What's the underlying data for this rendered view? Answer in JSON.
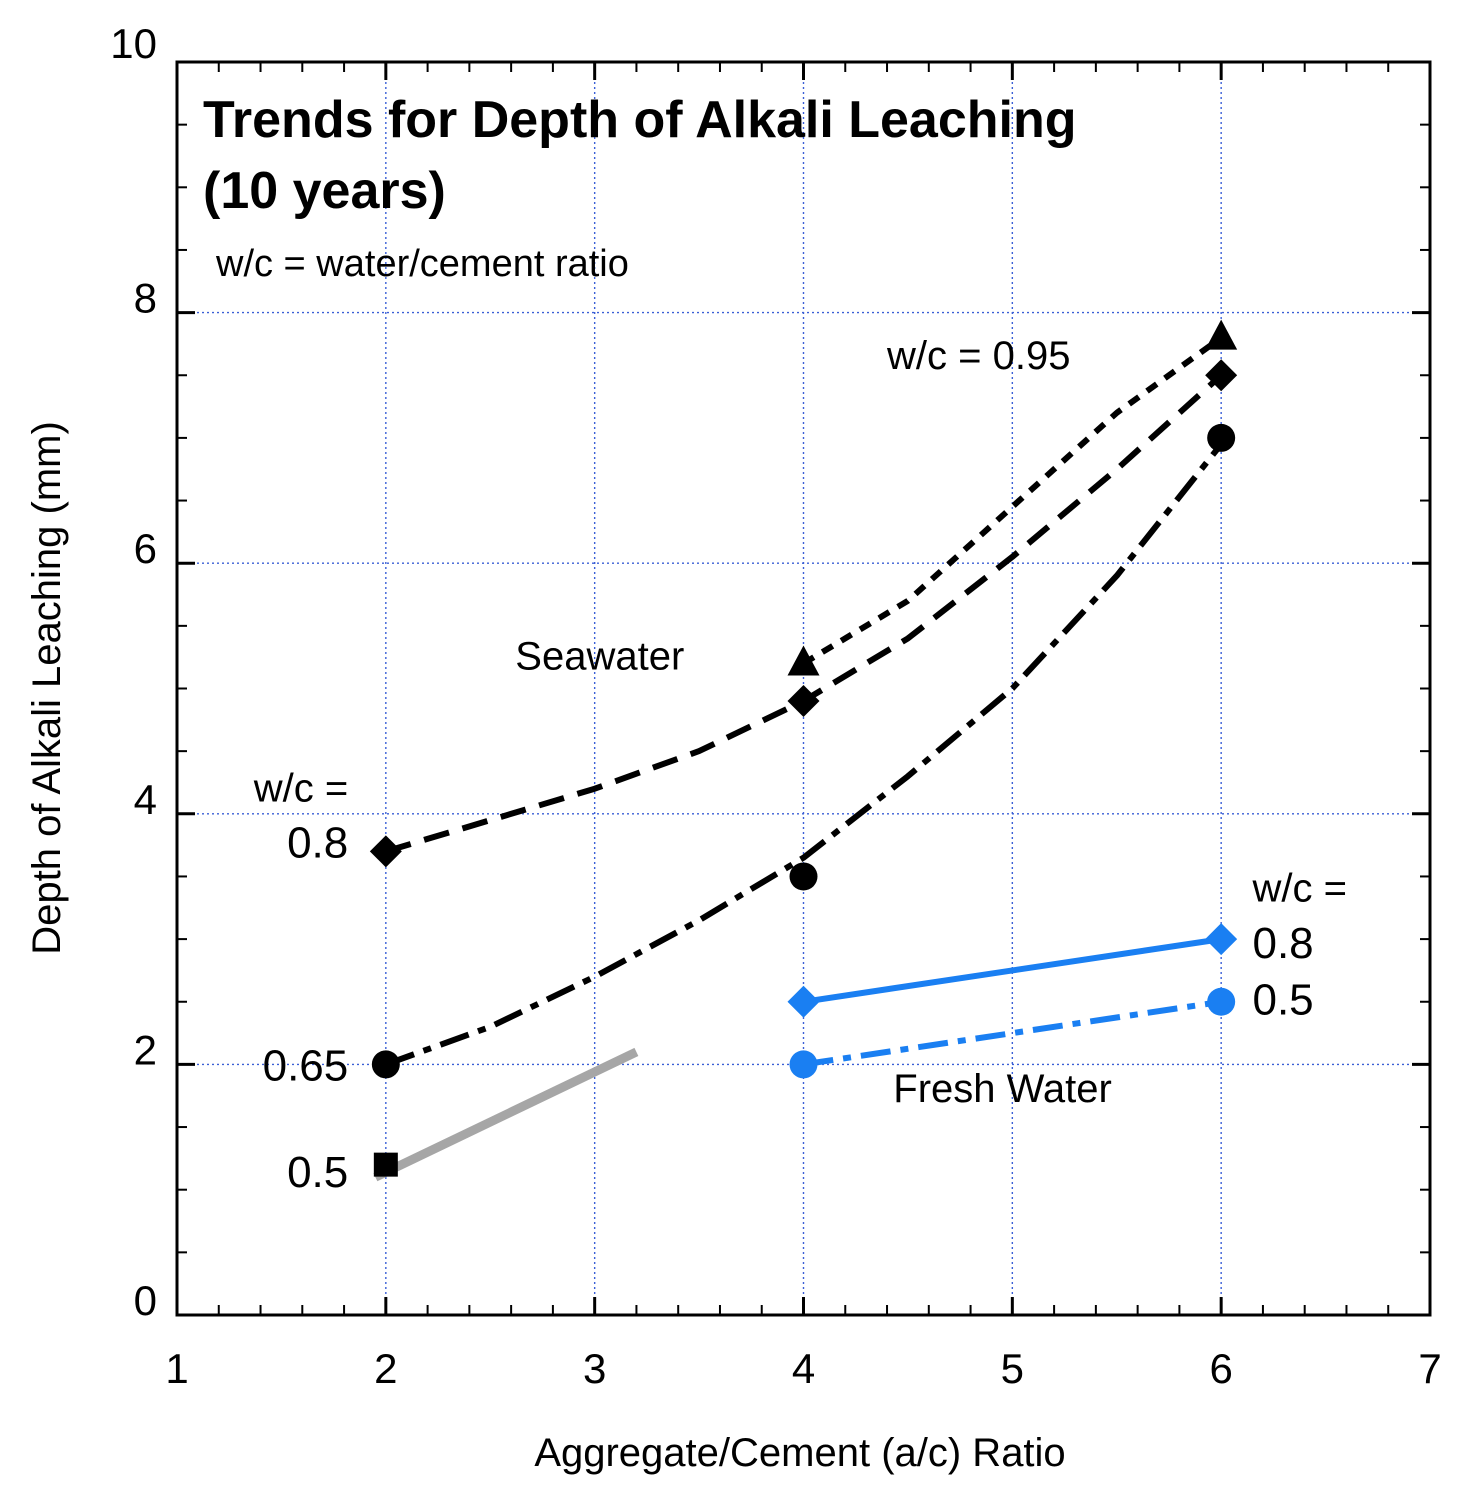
{
  "chart_data": {
    "type": "line",
    "title": "Trends for Depth of Alkali Leaching",
    "subtitle": "(10 years)",
    "note": "w/c = water/cement ratio",
    "xlabel": "Aggregate/Cement (a/c) Ratio",
    "ylabel": "Depth of Alkali Leaching (mm)",
    "xlim": [
      1,
      7
    ],
    "ylim": [
      0,
      10
    ],
    "xticks": [
      1,
      2,
      3,
      4,
      5,
      6,
      7
    ],
    "yticks": [
      0,
      2,
      4,
      6,
      8,
      10
    ],
    "x_tick_labels": [
      "1",
      "2",
      "3",
      "4",
      "5",
      "6",
      "7"
    ],
    "y_tick_labels": [
      "0",
      "2",
      "4",
      "6",
      "8",
      "10"
    ],
    "grid": true,
    "series": [
      {
        "name": "Seawater w/c = 0.95",
        "group": "Seawater",
        "wc": 0.95,
        "marker": "triangle",
        "color": "#000000",
        "line_style": "short-dash",
        "points": [
          {
            "x": 4,
            "y": 5.2
          },
          {
            "x": 6,
            "y": 7.8
          }
        ],
        "curve": [
          {
            "x": 4,
            "y": 5.2
          },
          {
            "x": 4.5,
            "y": 5.7
          },
          {
            "x": 5,
            "y": 6.45
          },
          {
            "x": 5.5,
            "y": 7.2
          },
          {
            "x": 6,
            "y": 7.8
          }
        ]
      },
      {
        "name": "Seawater w/c = 0.8",
        "group": "Seawater",
        "wc": 0.8,
        "marker": "diamond",
        "color": "#000000",
        "line_style": "dash",
        "points": [
          {
            "x": 2,
            "y": 3.7
          },
          {
            "x": 4,
            "y": 4.9
          },
          {
            "x": 6,
            "y": 7.5
          }
        ],
        "curve": [
          {
            "x": 2,
            "y": 3.7
          },
          {
            "x": 2.5,
            "y": 3.95
          },
          {
            "x": 3,
            "y": 4.2
          },
          {
            "x": 3.5,
            "y": 4.5
          },
          {
            "x": 4,
            "y": 4.9
          },
          {
            "x": 4.5,
            "y": 5.4
          },
          {
            "x": 5,
            "y": 6.05
          },
          {
            "x": 5.5,
            "y": 6.75
          },
          {
            "x": 6,
            "y": 7.5
          }
        ]
      },
      {
        "name": "Seawater w/c = 0.65",
        "group": "Seawater",
        "wc": 0.65,
        "marker": "circle",
        "color": "#000000",
        "line_style": "dash-dot",
        "points": [
          {
            "x": 2,
            "y": 2.0
          },
          {
            "x": 4,
            "y": 3.5
          },
          {
            "x": 6,
            "y": 7.0
          }
        ],
        "curve": [
          {
            "x": 2,
            "y": 2.0
          },
          {
            "x": 2.5,
            "y": 2.3
          },
          {
            "x": 3,
            "y": 2.7
          },
          {
            "x": 3.5,
            "y": 3.15
          },
          {
            "x": 4,
            "y": 3.65
          },
          {
            "x": 4.5,
            "y": 4.3
          },
          {
            "x": 5,
            "y": 5.0
          },
          {
            "x": 5.5,
            "y": 5.9
          },
          {
            "x": 6,
            "y": 6.95
          }
        ]
      },
      {
        "name": "Seawater w/c = 0.5",
        "group": "Seawater",
        "wc": 0.5,
        "marker": "square",
        "color": "#000000",
        "line_style": "none",
        "points": [
          {
            "x": 2,
            "y": 1.2
          }
        ],
        "curve": []
      },
      {
        "name": "Trend w/c = 0.5",
        "group": "Seawater",
        "wc": 0.5,
        "marker": "none",
        "color": "#a6a6a6",
        "line_style": "solid-thick",
        "points": [],
        "curve": [
          {
            "x": 1.95,
            "y": 1.1
          },
          {
            "x": 3.2,
            "y": 2.1
          }
        ]
      },
      {
        "name": "Fresh Water w/c = 0.8",
        "group": "Fresh Water",
        "wc": 0.8,
        "marker": "diamond",
        "color": "#1a7ff2",
        "line_style": "solid",
        "points": [
          {
            "x": 4,
            "y": 2.5
          },
          {
            "x": 6,
            "y": 3.0
          }
        ],
        "curve": [
          {
            "x": 4,
            "y": 2.5
          },
          {
            "x": 6,
            "y": 3.0
          }
        ]
      },
      {
        "name": "Fresh Water w/c = 0.5",
        "group": "Fresh Water",
        "wc": 0.5,
        "marker": "circle",
        "color": "#1a7ff2",
        "line_style": "dash-dot",
        "points": [
          {
            "x": 4,
            "y": 2.0
          },
          {
            "x": 6,
            "y": 2.5
          }
        ],
        "curve": [
          {
            "x": 4,
            "y": 2.0
          },
          {
            "x": 6,
            "y": 2.5
          }
        ]
      }
    ],
    "annotations": [
      {
        "id": "wc-095",
        "text": "w/c = 0.95",
        "x": 4.4,
        "y": 7.55,
        "anchor": "start",
        "size": "medium"
      },
      {
        "id": "seawater",
        "text": "Seawater",
        "x": 2.62,
        "y": 5.15,
        "anchor": "start",
        "size": "medium"
      },
      {
        "id": "wc-eq-left",
        "text": "w/c =",
        "x": 1.82,
        "y": 4.1,
        "anchor": "end",
        "size": "medium"
      },
      {
        "id": "wc-08-left",
        "text": "0.8",
        "x": 1.82,
        "y": 3.65,
        "anchor": "end",
        "size": "large"
      },
      {
        "id": "wc-065-left",
        "text": "0.65",
        "x": 1.82,
        "y": 1.87,
        "anchor": "end",
        "size": "large"
      },
      {
        "id": "wc-05-left",
        "text": "0.5",
        "x": 1.82,
        "y": 1.02,
        "anchor": "end",
        "size": "large"
      },
      {
        "id": "wc-eq-right",
        "text": "w/c =",
        "x": 6.15,
        "y": 3.3,
        "anchor": "start",
        "size": "medium"
      },
      {
        "id": "wc-08-right",
        "text": "0.8",
        "x": 6.15,
        "y": 2.85,
        "anchor": "start",
        "size": "large"
      },
      {
        "id": "wc-05-right",
        "text": "0.5",
        "x": 6.15,
        "y": 2.4,
        "anchor": "start",
        "size": "large"
      },
      {
        "id": "fresh-water",
        "text": "Fresh Water",
        "x": 4.43,
        "y": 1.7,
        "anchor": "start",
        "size": "medium"
      }
    ]
  }
}
